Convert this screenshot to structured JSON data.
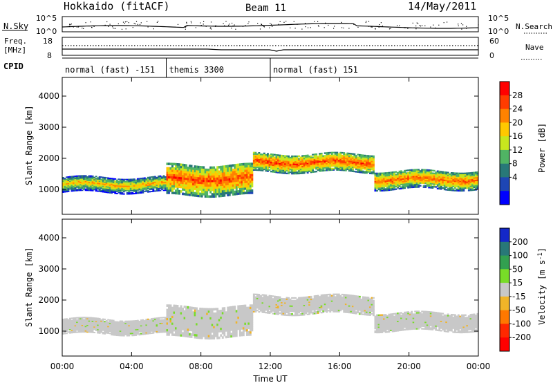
{
  "header": {
    "station": "Hokkaido (fitACF)",
    "beam": "Beam 11",
    "date": "14/May/2011"
  },
  "noise_panel": {
    "left_label": "N.Sky",
    "right_label": "N.Search",
    "left_ticks": [
      "10^5",
      "10^0"
    ],
    "right_ticks": [
      "10^5",
      "10^0"
    ]
  },
  "freq_panel": {
    "left_label": "Freq.",
    "left_unit": "[MHz]",
    "left_ticks": [
      "18",
      "8"
    ],
    "right_label": "Nave",
    "right_ticks": [
      "60",
      "0"
    ]
  },
  "cpid": {
    "label": "CPID",
    "segments": [
      {
        "name": "normal (fast) -151",
        "start_hour": 0,
        "end_hour": 6
      },
      {
        "name": "themis 3300",
        "start_hour": 6,
        "end_hour": 12
      },
      {
        "name": "normal (fast) 151",
        "start_hour": 12,
        "end_hour": 24
      }
    ]
  },
  "power_colorbar": {
    "label": "Power [dB]",
    "ticks": [
      "28",
      "24",
      "20",
      "16",
      "12",
      "8",
      "4"
    ],
    "colors": [
      "#ff0000",
      "#ff3c00",
      "#ff8200",
      "#ffc800",
      "#c8e61e",
      "#50b464",
      "#287878",
      "#1e46b4",
      "#0000ff"
    ]
  },
  "velocity_colorbar": {
    "label": "Velocity [m s",
    "label_sup": "-1",
    "label_end": "]",
    "ticks": [
      "200",
      "100",
      "50",
      "15",
      "-15",
      "-50",
      "-100",
      "-200"
    ],
    "colors": [
      "#1428c8",
      "#287878",
      "#32a050",
      "#78dc28",
      "#c8c8c8",
      "#f0b428",
      "#ff7800",
      "#ff2800",
      "#ff0000"
    ]
  },
  "chart_data": {
    "type": "heatmap",
    "xlabel": "Time UT",
    "ylabel": "Slant Range [km]",
    "x_ticks": [
      "00:00",
      "04:00",
      "08:00",
      "12:00",
      "16:00",
      "20:00",
      "00:00"
    ],
    "x_range_hours": [
      0,
      24
    ],
    "y_ticks": [
      "1000",
      "2000",
      "3000",
      "4000"
    ],
    "y_range_km": [
      200,
      4600
    ],
    "power_bands": [
      {
        "start_hour": 0,
        "end_hour": 6,
        "center_km": 1150,
        "width_km": 250,
        "power_db": 22
      },
      {
        "start_hour": 6,
        "end_hour": 11,
        "center_km": 1300,
        "width_km": 500,
        "power_db": 28
      },
      {
        "start_hour": 11,
        "end_hour": 18,
        "center_km": 1850,
        "width_km": 300,
        "power_db": 28
      },
      {
        "start_hour": 18,
        "end_hour": 24,
        "center_km": 1300,
        "width_km": 300,
        "power_db": 26
      }
    ],
    "velocity_band": {
      "start_hour": 0,
      "end_hour": 24,
      "velocity_ms": 0
    }
  }
}
